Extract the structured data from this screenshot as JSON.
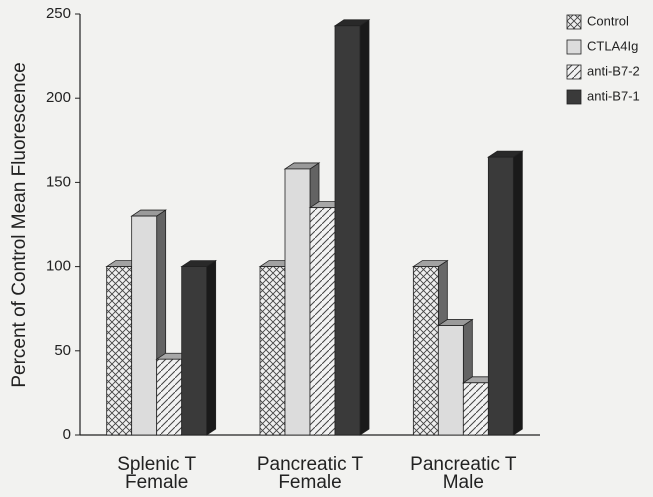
{
  "chart_data": {
    "type": "bar3d",
    "y_label": "Percent of Control Mean Fluorescence",
    "categories": [
      [
        "Splenic T",
        "Female"
      ],
      [
        "Pancreatic T",
        "Female"
      ],
      [
        "Pancreatic T",
        "Male"
      ]
    ],
    "series": [
      {
        "name": "Control",
        "color": "#e8e8e8",
        "pattern": "crosshatch",
        "values": [
          100,
          100,
          100
        ]
      },
      {
        "name": "CTLA4Ig",
        "color": "#dcdcdc",
        "pattern": "solid",
        "values": [
          130,
          158,
          65
        ]
      },
      {
        "name": "anti-B7-2",
        "color": "#efefef",
        "pattern": "diagonal",
        "values": [
          45,
          135,
          31
        ]
      },
      {
        "name": "anti-B7-1",
        "color": "#3a3a3a",
        "pattern": "solid",
        "values": [
          100,
          243,
          165
        ]
      }
    ],
    "ylim": [
      0,
      250
    ],
    "yticks": [
      0,
      50,
      100,
      150,
      200,
      250
    ],
    "legend": "top-right"
  }
}
